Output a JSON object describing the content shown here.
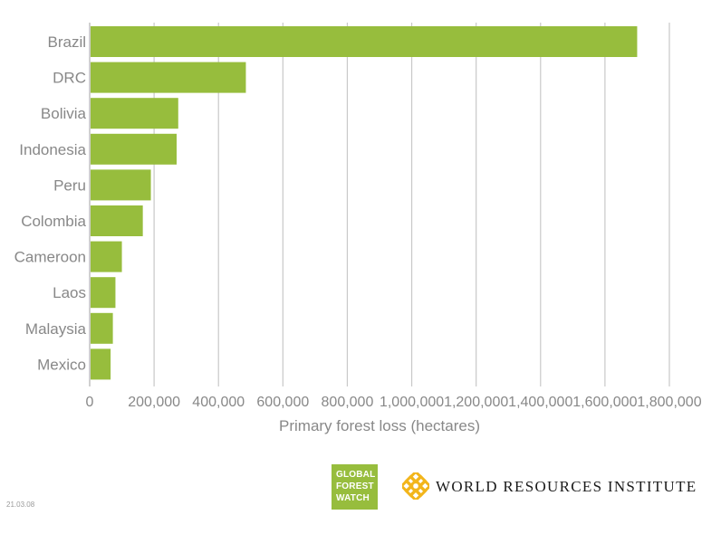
{
  "chart_data": {
    "type": "bar",
    "orientation": "horizontal",
    "categories": [
      "Brazil",
      "DRC",
      "Bolivia",
      "Indonesia",
      "Peru",
      "Colombia",
      "Cameroon",
      "Laos",
      "Malaysia",
      "Mexico"
    ],
    "values": [
      1700000,
      485000,
      275000,
      270000,
      190000,
      165000,
      100000,
      80000,
      72000,
      65000
    ],
    "xlabel": "Primary forest loss (hectares)",
    "ylabel": "",
    "xlim": [
      0,
      1800000
    ],
    "ticks": [
      {
        "value": 0,
        "label": "0"
      },
      {
        "value": 200000,
        "label": "200,000"
      },
      {
        "value": 400000,
        "label": "400,000"
      },
      {
        "value": 600000,
        "label": "600,000"
      },
      {
        "value": 800000,
        "label": "800,000"
      },
      {
        "value": 1000000,
        "label": "1,000,000"
      },
      {
        "value": 1200000,
        "label": "1,200,000"
      },
      {
        "value": 1400000,
        "label": "1,400,000"
      },
      {
        "value": 1600000,
        "label": "1,600,000"
      },
      {
        "value": 1800000,
        "label": "1,800,000"
      }
    ],
    "grid": true,
    "bar_color": "#97bd3d",
    "grid_color": "#c9c9c9"
  },
  "footer": {
    "date_stamp": "21.03.08",
    "gfw_logo_lines": [
      "GLOBAL",
      "FOREST",
      "WATCH"
    ],
    "gfw_color": "#97bd3d",
    "wri_mark_icon": "wri-lattice-icon",
    "wri_color": "#f2b51b",
    "wri_name": "WORLD RESOURCES INSTITUTE"
  }
}
